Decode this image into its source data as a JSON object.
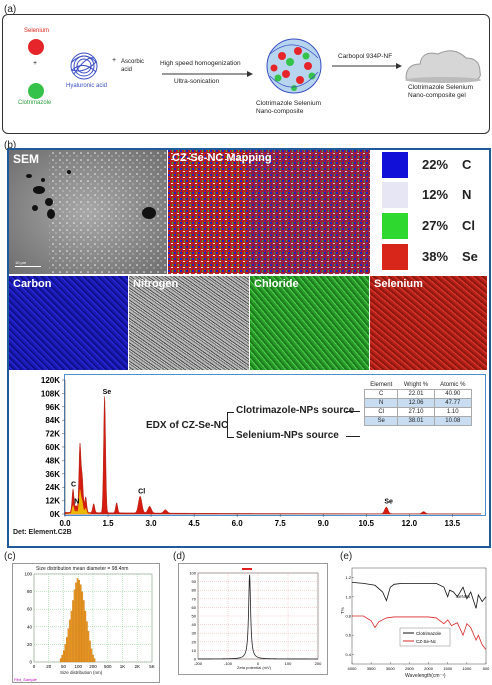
{
  "panel_a": {
    "label": "(a)",
    "selenium": "Selenium",
    "plus": "+",
    "clotrimazole": "Clotrimazole",
    "hyaluronic": "Hyaluronic acid",
    "ascorbic_plus": "+",
    "ascorbic": "Ascorbic\nacid",
    "step1_top": "High speed  homogenization",
    "step1_bottom": "Ultra-sonication",
    "product1": "Clotrimazole Selenium\nNano-composite",
    "step2_top": "Carbopol 934P-NF",
    "product2": "Clotrimazole Selenium\nNano-composite gel"
  },
  "panel_b": {
    "label": "(b)",
    "sem_label": "SEM",
    "sem_scale": "10 µm",
    "mapping_label": "CZ-Se-NC  Mapping",
    "legend": [
      {
        "pct": "22%",
        "el": "C",
        "color": "#1010d8"
      },
      {
        "pct": "12%",
        "el": "N",
        "color": "#e6e6f4"
      },
      {
        "pct": "27%",
        "el": "Cl",
        "color": "#2fd82f"
      },
      {
        "pct": "38%",
        "el": "Se",
        "color": "#d8261b"
      }
    ],
    "maps": [
      {
        "label": "Carbon",
        "color": "#1414c8"
      },
      {
        "label": "Nitrogen",
        "color": "#9a9a9a"
      },
      {
        "label": "Chloride",
        "color": "#34b834"
      },
      {
        "label": "Selenium",
        "color": "#c82a1e"
      }
    ],
    "edx_title": "EDX of CZ-Se-NC",
    "edx_src1": "Clotrimazole-NPs source",
    "edx_src2": "Selenium-NPs source",
    "edx_footer": "Det: Element.C2B",
    "edx_table": {
      "headers": [
        "Element",
        "Wright %",
        "Atomic %"
      ],
      "rows": [
        [
          "C",
          "22.01",
          "40.90"
        ],
        [
          "N",
          "12.06",
          "47.77"
        ],
        [
          "Cl",
          "27.10",
          "1.10"
        ],
        [
          "Se",
          "38.01",
          "10.08"
        ]
      ]
    }
  },
  "panel_c": {
    "label": "(c)",
    "title": "Size distribution mean diameter = 98.4nm",
    "xlabel": "Size distribution (nm)",
    "footer": "Plot_Sample"
  },
  "panel_d": {
    "label": "(d)",
    "xlabel": "Zeta potential (mV)"
  },
  "panel_e": {
    "label": "(e)",
    "ylabel": "T%",
    "xlabel": "Wavelength(cm⁻¹)",
    "annotation": "SeNPs",
    "series_names": [
      "Clotrimazole",
      "CZ-Se-Nc"
    ],
    "colors": [
      "#111111",
      "#d82a2a"
    ]
  },
  "chart_data": [
    {
      "type": "area",
      "title": "EDX of CZ-Se-NC",
      "x_ticks": [
        "0.0",
        "1.5",
        "3.0",
        "4.5",
        "6.0",
        "7.5",
        "9.0",
        "10.5",
        "12.0",
        "13.5"
      ],
      "y_ticks": [
        "0K",
        "12K",
        "24K",
        "36K",
        "48K",
        "60K",
        "72K",
        "84K",
        "96K",
        "108K",
        "120K"
      ],
      "xlim": [
        0,
        14.5
      ],
      "ylim": [
        0,
        120000
      ],
      "peaks": [
        {
          "label": "C",
          "x": 0.28,
          "y": 21000
        },
        {
          "label": "N",
          "x": 0.39,
          "y": 6000
        },
        {
          "label": "",
          "x": 0.52,
          "y": 60000
        },
        {
          "label": "",
          "x": 0.6,
          "y": 30000
        },
        {
          "label": "",
          "x": 0.72,
          "y": 14000
        },
        {
          "label": "",
          "x": 1.0,
          "y": 8000
        },
        {
          "label": "Se",
          "x": 1.38,
          "y": 104000
        },
        {
          "label": "",
          "x": 1.8,
          "y": 9000
        },
        {
          "label": "Cl",
          "x": 2.62,
          "y": 15000
        },
        {
          "label": "",
          "x": 2.95,
          "y": 6000
        },
        {
          "label": "",
          "x": 3.5,
          "y": 3000
        },
        {
          "label": "Se",
          "x": 11.2,
          "y": 6000
        },
        {
          "label": "",
          "x": 12.5,
          "y": 2000
        }
      ]
    },
    {
      "type": "bar",
      "title": "Size distribution mean diameter = 98.4nm",
      "xlabel": "Size distribution (nm)",
      "x_ticks": [
        "0",
        "20",
        "50",
        "100",
        "200",
        "500",
        "1K",
        "2K",
        "5K"
      ],
      "y_ticks": [
        "0",
        "20",
        "40",
        "60",
        "80",
        "100"
      ],
      "ylim": [
        0,
        100
      ],
      "values": [
        4,
        8,
        13,
        20,
        28,
        38,
        48,
        58,
        70,
        82,
        90,
        95,
        93,
        88,
        80,
        70,
        58,
        46,
        35,
        24,
        15,
        8,
        4
      ]
    },
    {
      "type": "line",
      "xlabel": "Zeta potential (mV)",
      "x_ticks": [
        "-200",
        "-100",
        "0",
        "100",
        "200"
      ],
      "y_ticks": [
        "0",
        "10",
        "20",
        "30",
        "40",
        "50",
        "60",
        "70",
        "80",
        "90",
        "100"
      ],
      "xlim": [
        -200,
        200
      ],
      "ylim": [
        0,
        100
      ],
      "peak": {
        "x": -28,
        "y": 98
      }
    },
    {
      "type": "line",
      "xlabel": "Wavelength(cm⁻¹)",
      "ylabel": "T%",
      "x_ticks": [
        "4000",
        "3500",
        "3000",
        "2500",
        "2000",
        "1500",
        "1000",
        "500"
      ],
      "y_ticks": [
        "0.4",
        "0.6",
        "0.8",
        "1.0",
        "1.2"
      ],
      "xlim": [
        4000,
        500
      ],
      "ylim": [
        0.3,
        1.3
      ],
      "series": [
        {
          "name": "Clotrimazole",
          "x": [
            4000,
            3700,
            3400,
            3200,
            3100,
            3000,
            2900,
            2700,
            2400,
            2100,
            1800,
            1600,
            1500,
            1450,
            1350,
            1250,
            1100,
            1000,
            900,
            760,
            700,
            600,
            500
          ],
          "y": [
            1.15,
            1.14,
            1.12,
            1.05,
            0.96,
            1.1,
            1.13,
            1.14,
            1.14,
            1.14,
            1.14,
            1.1,
            1.0,
            1.07,
            1.05,
            1.0,
            1.1,
            0.98,
            1.05,
            0.88,
            1.02,
            0.95,
            1.0
          ]
        },
        {
          "name": "CZ-Se-Nc",
          "x": [
            4000,
            3700,
            3500,
            3400,
            3300,
            3100,
            2900,
            2700,
            2400,
            2200,
            2000,
            1800,
            1600,
            1500,
            1400,
            1250,
            1100,
            1000,
            900,
            760,
            700,
            600,
            500
          ],
          "y": [
            0.8,
            0.8,
            0.75,
            0.68,
            0.74,
            0.78,
            0.79,
            0.79,
            0.79,
            0.79,
            0.79,
            0.78,
            0.72,
            0.76,
            0.7,
            0.73,
            0.6,
            0.72,
            0.68,
            0.55,
            0.6,
            0.5,
            0.45
          ]
        }
      ]
    }
  ]
}
